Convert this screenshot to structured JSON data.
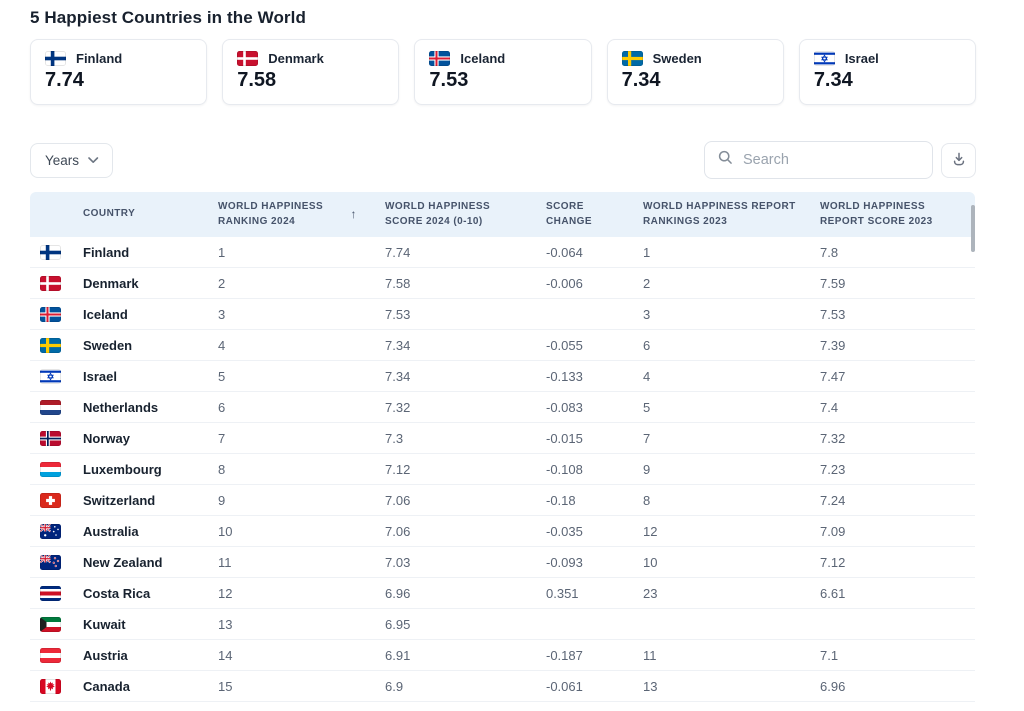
{
  "page": {
    "title": "5 Happiest Countries in the World"
  },
  "summary_cards": [
    {
      "country": "Finland",
      "score": "7.74",
      "flag": "finland"
    },
    {
      "country": "Denmark",
      "score": "7.58",
      "flag": "denmark"
    },
    {
      "country": "Iceland",
      "score": "7.53",
      "flag": "iceland"
    },
    {
      "country": "Sweden",
      "score": "7.34",
      "flag": "sweden"
    },
    {
      "country": "Israel",
      "score": "7.34",
      "flag": "israel"
    }
  ],
  "toolbar": {
    "years_label": "Years",
    "search_placeholder": "Search",
    "icons": {
      "years_chevron": "chevron-down-icon",
      "search": "search-icon",
      "download": "download-icon"
    }
  },
  "table": {
    "sort_indicator": "↑",
    "columns": [
      {
        "id": "country",
        "label": "COUNTRY",
        "sorted": false
      },
      {
        "id": "ranking_2024",
        "label": "WORLD HAPPINESS RANKING 2024",
        "sorted": true
      },
      {
        "id": "score_2024",
        "label": "WORLD HAPPINESS SCORE 2024 (0-10)",
        "sorted": false
      },
      {
        "id": "score_change",
        "label": "SCORE CHANGE",
        "sorted": false
      },
      {
        "id": "report_rankings_2023",
        "label": "WORLD HAPPINESS REPORT RANKINGS 2023",
        "sorted": false
      },
      {
        "id": "report_score_2023",
        "label": "WORLD HAPPINESS REPORT SCORE 2023",
        "sorted": false
      }
    ],
    "rows": [
      {
        "country": "Finland",
        "flag": "finland",
        "ranking_2024": "1",
        "score_2024": "7.74",
        "score_change": "-0.064",
        "report_rankings_2023": "1",
        "report_score_2023": "7.8"
      },
      {
        "country": "Denmark",
        "flag": "denmark",
        "ranking_2024": "2",
        "score_2024": "7.58",
        "score_change": "-0.006",
        "report_rankings_2023": "2",
        "report_score_2023": "7.59"
      },
      {
        "country": "Iceland",
        "flag": "iceland",
        "ranking_2024": "3",
        "score_2024": "7.53",
        "score_change": "",
        "report_rankings_2023": "3",
        "report_score_2023": "7.53"
      },
      {
        "country": "Sweden",
        "flag": "sweden",
        "ranking_2024": "4",
        "score_2024": "7.34",
        "score_change": "-0.055",
        "report_rankings_2023": "6",
        "report_score_2023": "7.39"
      },
      {
        "country": "Israel",
        "flag": "israel",
        "ranking_2024": "5",
        "score_2024": "7.34",
        "score_change": "-0.133",
        "report_rankings_2023": "4",
        "report_score_2023": "7.47"
      },
      {
        "country": "Netherlands",
        "flag": "netherlands",
        "ranking_2024": "6",
        "score_2024": "7.32",
        "score_change": "-0.083",
        "report_rankings_2023": "5",
        "report_score_2023": "7.4"
      },
      {
        "country": "Norway",
        "flag": "norway",
        "ranking_2024": "7",
        "score_2024": "7.3",
        "score_change": "-0.015",
        "report_rankings_2023": "7",
        "report_score_2023": "7.32"
      },
      {
        "country": "Luxembourg",
        "flag": "luxembourg",
        "ranking_2024": "8",
        "score_2024": "7.12",
        "score_change": "-0.108",
        "report_rankings_2023": "9",
        "report_score_2023": "7.23"
      },
      {
        "country": "Switzerland",
        "flag": "switzerland",
        "ranking_2024": "9",
        "score_2024": "7.06",
        "score_change": "-0.18",
        "report_rankings_2023": "8",
        "report_score_2023": "7.24"
      },
      {
        "country": "Australia",
        "flag": "australia",
        "ranking_2024": "10",
        "score_2024": "7.06",
        "score_change": "-0.035",
        "report_rankings_2023": "12",
        "report_score_2023": "7.09"
      },
      {
        "country": "New Zealand",
        "flag": "new-zealand",
        "ranking_2024": "11",
        "score_2024": "7.03",
        "score_change": "-0.093",
        "report_rankings_2023": "10",
        "report_score_2023": "7.12"
      },
      {
        "country": "Costa Rica",
        "flag": "costa-rica",
        "ranking_2024": "12",
        "score_2024": "6.96",
        "score_change": "0.351",
        "report_rankings_2023": "23",
        "report_score_2023": "6.61"
      },
      {
        "country": "Kuwait",
        "flag": "kuwait",
        "ranking_2024": "13",
        "score_2024": "6.95",
        "score_change": "",
        "report_rankings_2023": "",
        "report_score_2023": ""
      },
      {
        "country": "Austria",
        "flag": "austria",
        "ranking_2024": "14",
        "score_2024": "6.91",
        "score_change": "-0.187",
        "report_rankings_2023": "11",
        "report_score_2023": "7.1"
      },
      {
        "country": "Canada",
        "flag": "canada",
        "ranking_2024": "15",
        "score_2024": "6.9",
        "score_change": "-0.061",
        "report_rankings_2023": "13",
        "report_score_2023": "6.96"
      }
    ]
  },
  "colors": {
    "table_header_bg": "#e9f2fa",
    "header_text": "#46536a",
    "row_border": "#eef1f5",
    "title_text": "#18212e"
  }
}
